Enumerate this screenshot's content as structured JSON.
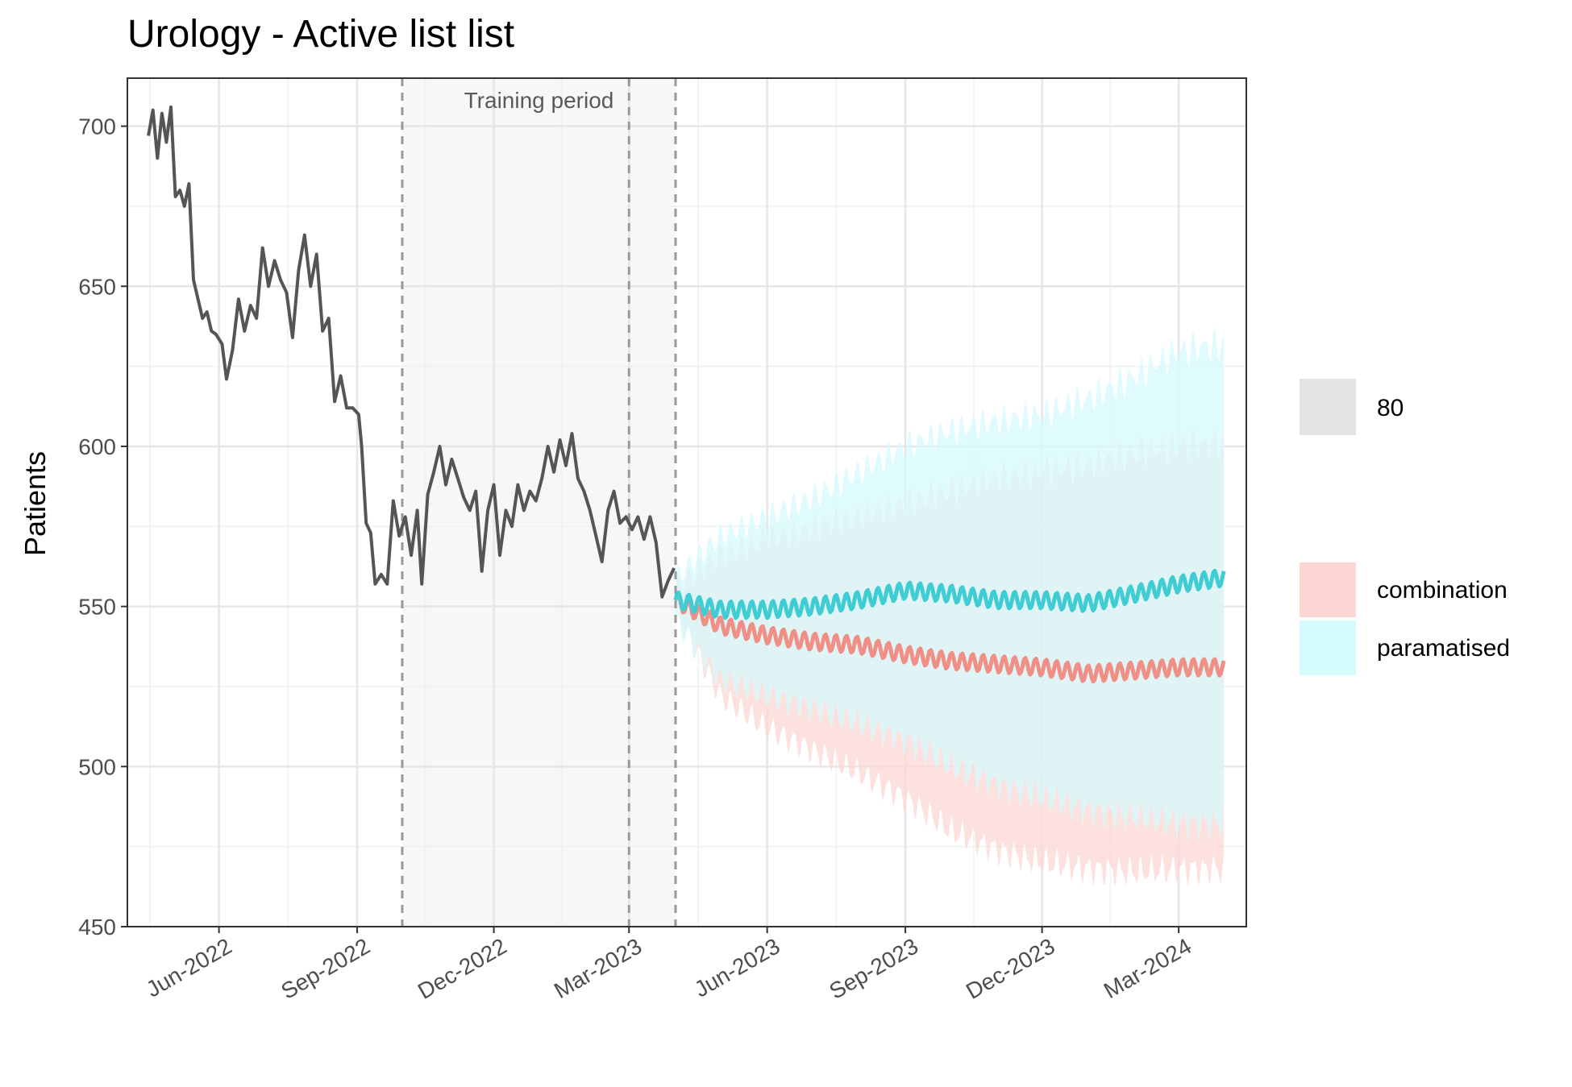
{
  "chart_data": {
    "type": "line",
    "title": "Urology - Active list list",
    "xlabel": "",
    "ylabel": "Patients",
    "ylim": [
      450,
      715
    ],
    "xlim": [
      "2022-04-01",
      "2024-04-15"
    ],
    "y_ticks": [
      450,
      500,
      550,
      600,
      650,
      700
    ],
    "x_ticks": [
      {
        "date": "2022-06-01",
        "label": "Jun-2022"
      },
      {
        "date": "2022-09-01",
        "label": "Sep-2022"
      },
      {
        "date": "2022-12-01",
        "label": "Dec-2022"
      },
      {
        "date": "2023-03-01",
        "label": "Mar-2023"
      },
      {
        "date": "2023-06-01",
        "label": "Jun-2023"
      },
      {
        "date": "2023-09-01",
        "label": "Sep-2023"
      },
      {
        "date": "2023-12-01",
        "label": "Dec-2023"
      },
      {
        "date": "2024-03-01",
        "label": "Mar-2024"
      }
    ],
    "grid": true,
    "training_period": {
      "label": "Training period",
      "start": "2022-10-01",
      "end": "2023-04-01",
      "marker": "2023-03-01"
    },
    "observed": {
      "color": "#555555",
      "points": [
        [
          "2022-04-15",
          697
        ],
        [
          "2022-04-18",
          705
        ],
        [
          "2022-04-21",
          690
        ],
        [
          "2022-04-24",
          704
        ],
        [
          "2022-04-27",
          695
        ],
        [
          "2022-04-30",
          706
        ],
        [
          "2022-05-03",
          678
        ],
        [
          "2022-05-06",
          680
        ],
        [
          "2022-05-09",
          675
        ],
        [
          "2022-05-12",
          682
        ],
        [
          "2022-05-15",
          652
        ],
        [
          "2022-05-18",
          646
        ],
        [
          "2022-05-21",
          640
        ],
        [
          "2022-05-24",
          642
        ],
        [
          "2022-05-27",
          636
        ],
        [
          "2022-05-30",
          635
        ],
        [
          "2022-06-03",
          632
        ],
        [
          "2022-06-06",
          621
        ],
        [
          "2022-06-10",
          630
        ],
        [
          "2022-06-14",
          646
        ],
        [
          "2022-06-18",
          636
        ],
        [
          "2022-06-22",
          644
        ],
        [
          "2022-06-26",
          640
        ],
        [
          "2022-06-30",
          662
        ],
        [
          "2022-07-04",
          650
        ],
        [
          "2022-07-08",
          658
        ],
        [
          "2022-07-12",
          652
        ],
        [
          "2022-07-16",
          648
        ],
        [
          "2022-07-20",
          634
        ],
        [
          "2022-07-24",
          655
        ],
        [
          "2022-07-28",
          666
        ],
        [
          "2022-08-01",
          650
        ],
        [
          "2022-08-05",
          660
        ],
        [
          "2022-08-09",
          636
        ],
        [
          "2022-08-13",
          640
        ],
        [
          "2022-08-17",
          614
        ],
        [
          "2022-08-21",
          622
        ],
        [
          "2022-08-25",
          612
        ],
        [
          "2022-08-29",
          612
        ],
        [
          "2022-09-02",
          610
        ],
        [
          "2022-09-04",
          600
        ],
        [
          "2022-09-07",
          576
        ],
        [
          "2022-09-10",
          573
        ],
        [
          "2022-09-13",
          557
        ],
        [
          "2022-09-17",
          560
        ],
        [
          "2022-09-21",
          557
        ],
        [
          "2022-09-25",
          583
        ],
        [
          "2022-09-29",
          572
        ],
        [
          "2022-10-03",
          578
        ],
        [
          "2022-10-07",
          566
        ],
        [
          "2022-10-11",
          580
        ],
        [
          "2022-10-14",
          557
        ],
        [
          "2022-10-18",
          585
        ],
        [
          "2022-10-22",
          592
        ],
        [
          "2022-10-26",
          600
        ],
        [
          "2022-10-30",
          588
        ],
        [
          "2022-11-03",
          596
        ],
        [
          "2022-11-07",
          590
        ],
        [
          "2022-11-11",
          584
        ],
        [
          "2022-11-15",
          580
        ],
        [
          "2022-11-19",
          586
        ],
        [
          "2022-11-23",
          561
        ],
        [
          "2022-11-27",
          580
        ],
        [
          "2022-12-01",
          588
        ],
        [
          "2022-12-05",
          566
        ],
        [
          "2022-12-09",
          580
        ],
        [
          "2022-12-13",
          575
        ],
        [
          "2022-12-17",
          588
        ],
        [
          "2022-12-21",
          580
        ],
        [
          "2022-12-25",
          586
        ],
        [
          "2022-12-29",
          583
        ],
        [
          "2023-01-02",
          590
        ],
        [
          "2023-01-06",
          600
        ],
        [
          "2023-01-10",
          592
        ],
        [
          "2023-01-14",
          602
        ],
        [
          "2023-01-18",
          594
        ],
        [
          "2023-01-22",
          604
        ],
        [
          "2023-01-26",
          590
        ],
        [
          "2023-01-30",
          586
        ],
        [
          "2023-02-03",
          580
        ],
        [
          "2023-02-07",
          572
        ],
        [
          "2023-02-11",
          564
        ],
        [
          "2023-02-15",
          580
        ],
        [
          "2023-02-19",
          586
        ],
        [
          "2023-02-23",
          576
        ],
        [
          "2023-02-27",
          578
        ],
        [
          "2023-03-03",
          574
        ],
        [
          "2023-03-07",
          578
        ],
        [
          "2023-03-11",
          571
        ],
        [
          "2023-03-15",
          578
        ],
        [
          "2023-03-19",
          570
        ],
        [
          "2023-03-23",
          553
        ],
        [
          "2023-03-27",
          558
        ],
        [
          "2023-03-31",
          562
        ]
      ]
    },
    "band_level_label": "80",
    "band_level_color": "#e3e3e3",
    "series": [
      {
        "name": "combination",
        "color": "#f08f86",
        "band_color": "#fcd7d4",
        "points": [
          [
            "2023-04-01",
            552,
            548,
            556
          ],
          [
            "2023-05-01",
            544,
            522,
            566
          ],
          [
            "2023-06-01",
            541,
            512,
            571
          ],
          [
            "2023-07-01",
            539,
            505,
            574
          ],
          [
            "2023-08-01",
            538,
            498,
            578
          ],
          [
            "2023-09-01",
            535,
            490,
            582
          ],
          [
            "2023-10-01",
            533,
            480,
            586
          ],
          [
            "2023-11-01",
            532,
            474,
            590
          ],
          [
            "2023-12-01",
            531,
            470,
            592
          ],
          [
            "2024-01-01",
            529,
            468,
            594
          ],
          [
            "2024-02-01",
            530,
            467,
            598
          ],
          [
            "2024-03-01",
            531,
            468,
            600
          ],
          [
            "2024-03-31",
            531,
            468,
            601
          ]
        ]
      },
      {
        "name": "paramatised",
        "color": "#3fcdd3",
        "band_color": "#d5fafd",
        "points": [
          [
            "2023-04-01",
            552,
            545,
            559
          ],
          [
            "2023-05-01",
            549,
            527,
            572
          ],
          [
            "2023-06-01",
            549,
            522,
            578
          ],
          [
            "2023-07-01",
            550,
            518,
            584
          ],
          [
            "2023-08-01",
            552,
            513,
            592
          ],
          [
            "2023-09-01",
            555,
            508,
            600
          ],
          [
            "2023-10-01",
            554,
            500,
            605
          ],
          [
            "2023-11-01",
            552,
            494,
            608
          ],
          [
            "2023-12-01",
            552,
            490,
            610
          ],
          [
            "2024-01-01",
            551,
            486,
            615
          ],
          [
            "2024-02-01",
            554,
            484,
            622
          ],
          [
            "2024-03-01",
            557,
            482,
            630
          ],
          [
            "2024-03-31",
            559,
            482,
            632
          ]
        ]
      }
    ]
  }
}
